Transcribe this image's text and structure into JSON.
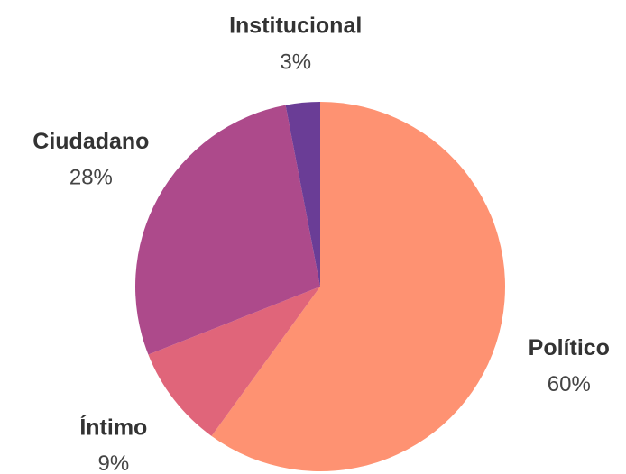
{
  "chart_data": {
    "type": "pie",
    "categories": [
      "Político",
      "Íntimo",
      "Ciudadano",
      "Institucional"
    ],
    "values": [
      60,
      9,
      28,
      3
    ],
    "value_labels": [
      "60%",
      "9%",
      "28%",
      "3%"
    ],
    "colors": [
      "#fe9272",
      "#e0657a",
      "#ad4a8b",
      "#6a3d96"
    ]
  }
}
